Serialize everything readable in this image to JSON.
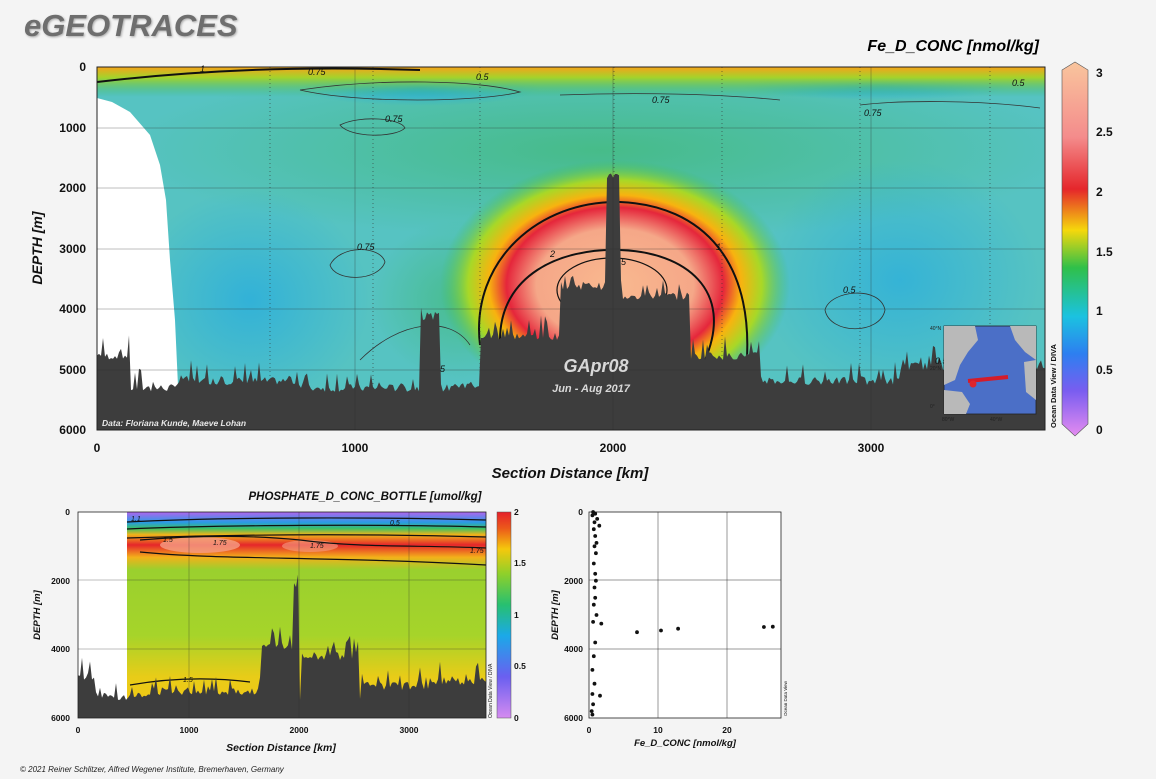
{
  "brand": "eGEOTRACES",
  "footer": "© 2021 Reiner Schlitzer, Alfred Wegener Institute, Bremerhaven, Germany",
  "side_label": "Ocean Data View / DIVA",
  "colors": {
    "seafloor": "#3d3d3d",
    "background": "#f4f4f4"
  },
  "main_section": {
    "title": "Fe_D_CONC [nmol/kg]",
    "cruise": "GApr08",
    "period": "Jun - Aug 2017",
    "credit": "Data: Floriana Kunde, Maeve Lohan",
    "inset_map": "inset-map"
  },
  "chart_data": [
    {
      "type": "heatmap",
      "id": "fe-section",
      "title": "Fe_D_CONC [nmol/kg]",
      "xlabel": "Section Distance [km]",
      "ylabel": "DEPTH [m]",
      "xlim": [
        0,
        3700
      ],
      "ylim": [
        6000,
        0
      ],
      "x_ticks": [
        "0",
        "1000",
        "2000",
        "3000"
      ],
      "y_ticks": [
        "0",
        "1000",
        "2000",
        "3000",
        "4000",
        "5000",
        "6000"
      ],
      "colorbar": {
        "min": 0,
        "max": 3,
        "ticks": [
          "0",
          "0.5",
          "1",
          "1.5",
          "2",
          "2.5",
          "3"
        ]
      },
      "contour_labels": [
        "1",
        "0.75",
        "0.5",
        "0.75",
        "0.75",
        "0.75",
        "0.5",
        "0.75",
        "0.5",
        "2",
        "1",
        "5",
        "0.5",
        "5"
      ],
      "features": {
        "plume_center_km": 2000,
        "plume_depth_m": 3600,
        "plume_max": 3,
        "background": 0.6
      }
    },
    {
      "type": "heatmap",
      "id": "phosphate-section",
      "title": "PHOSPHATE_D_CONC_BOTTLE [umol/kg]",
      "xlabel": "Section Distance [km]",
      "ylabel": "DEPTH [m]",
      "xlim": [
        0,
        3700
      ],
      "ylim": [
        6000,
        0
      ],
      "x_ticks": [
        "0",
        "1000",
        "2000",
        "3000"
      ],
      "y_ticks": [
        "0",
        "2000",
        "4000",
        "6000"
      ],
      "colorbar": {
        "min": 0,
        "max": 2,
        "ticks": [
          "0",
          "0.5",
          "1",
          "1.5",
          "2"
        ]
      },
      "contour_labels": [
        "1.1",
        "0.5",
        "1.5",
        "1.75",
        "1.75",
        "1.75",
        "1.5"
      ]
    },
    {
      "type": "scatter",
      "id": "fe-profile",
      "xlabel": "Fe_D_CONC [nmol/kg]",
      "ylabel": "DEPTH [m]",
      "xlim": [
        0,
        28
      ],
      "ylim": [
        6000,
        0
      ],
      "x_ticks": [
        "0",
        "10",
        "20"
      ],
      "y_ticks": [
        "0",
        "2000",
        "4000",
        "6000"
      ],
      "points": [
        [
          0.6,
          0
        ],
        [
          0.9,
          50
        ],
        [
          0.5,
          100
        ],
        [
          1.2,
          200
        ],
        [
          0.8,
          300
        ],
        [
          1.5,
          400
        ],
        [
          0.7,
          500
        ],
        [
          0.9,
          700
        ],
        [
          1.1,
          900
        ],
        [
          0.8,
          1000
        ],
        [
          1.0,
          1200
        ],
        [
          0.7,
          1500
        ],
        [
          0.9,
          1800
        ],
        [
          1.0,
          2000
        ],
        [
          0.8,
          2200
        ],
        [
          0.9,
          2500
        ],
        [
          0.7,
          2700
        ],
        [
          1.1,
          3000
        ],
        [
          0.6,
          3200
        ],
        [
          1.8,
          3250
        ],
        [
          7,
          3500
        ],
        [
          10.5,
          3450
        ],
        [
          13,
          3400
        ],
        [
          25.5,
          3350
        ],
        [
          26.8,
          3340
        ],
        [
          0.9,
          3800
        ],
        [
          0.7,
          4200
        ],
        [
          0.5,
          4600
        ],
        [
          0.8,
          5000
        ],
        [
          0.5,
          5300
        ],
        [
          1.6,
          5350
        ],
        [
          0.6,
          5600
        ],
        [
          0.4,
          5800
        ],
        [
          0.5,
          5900
        ]
      ]
    }
  ]
}
